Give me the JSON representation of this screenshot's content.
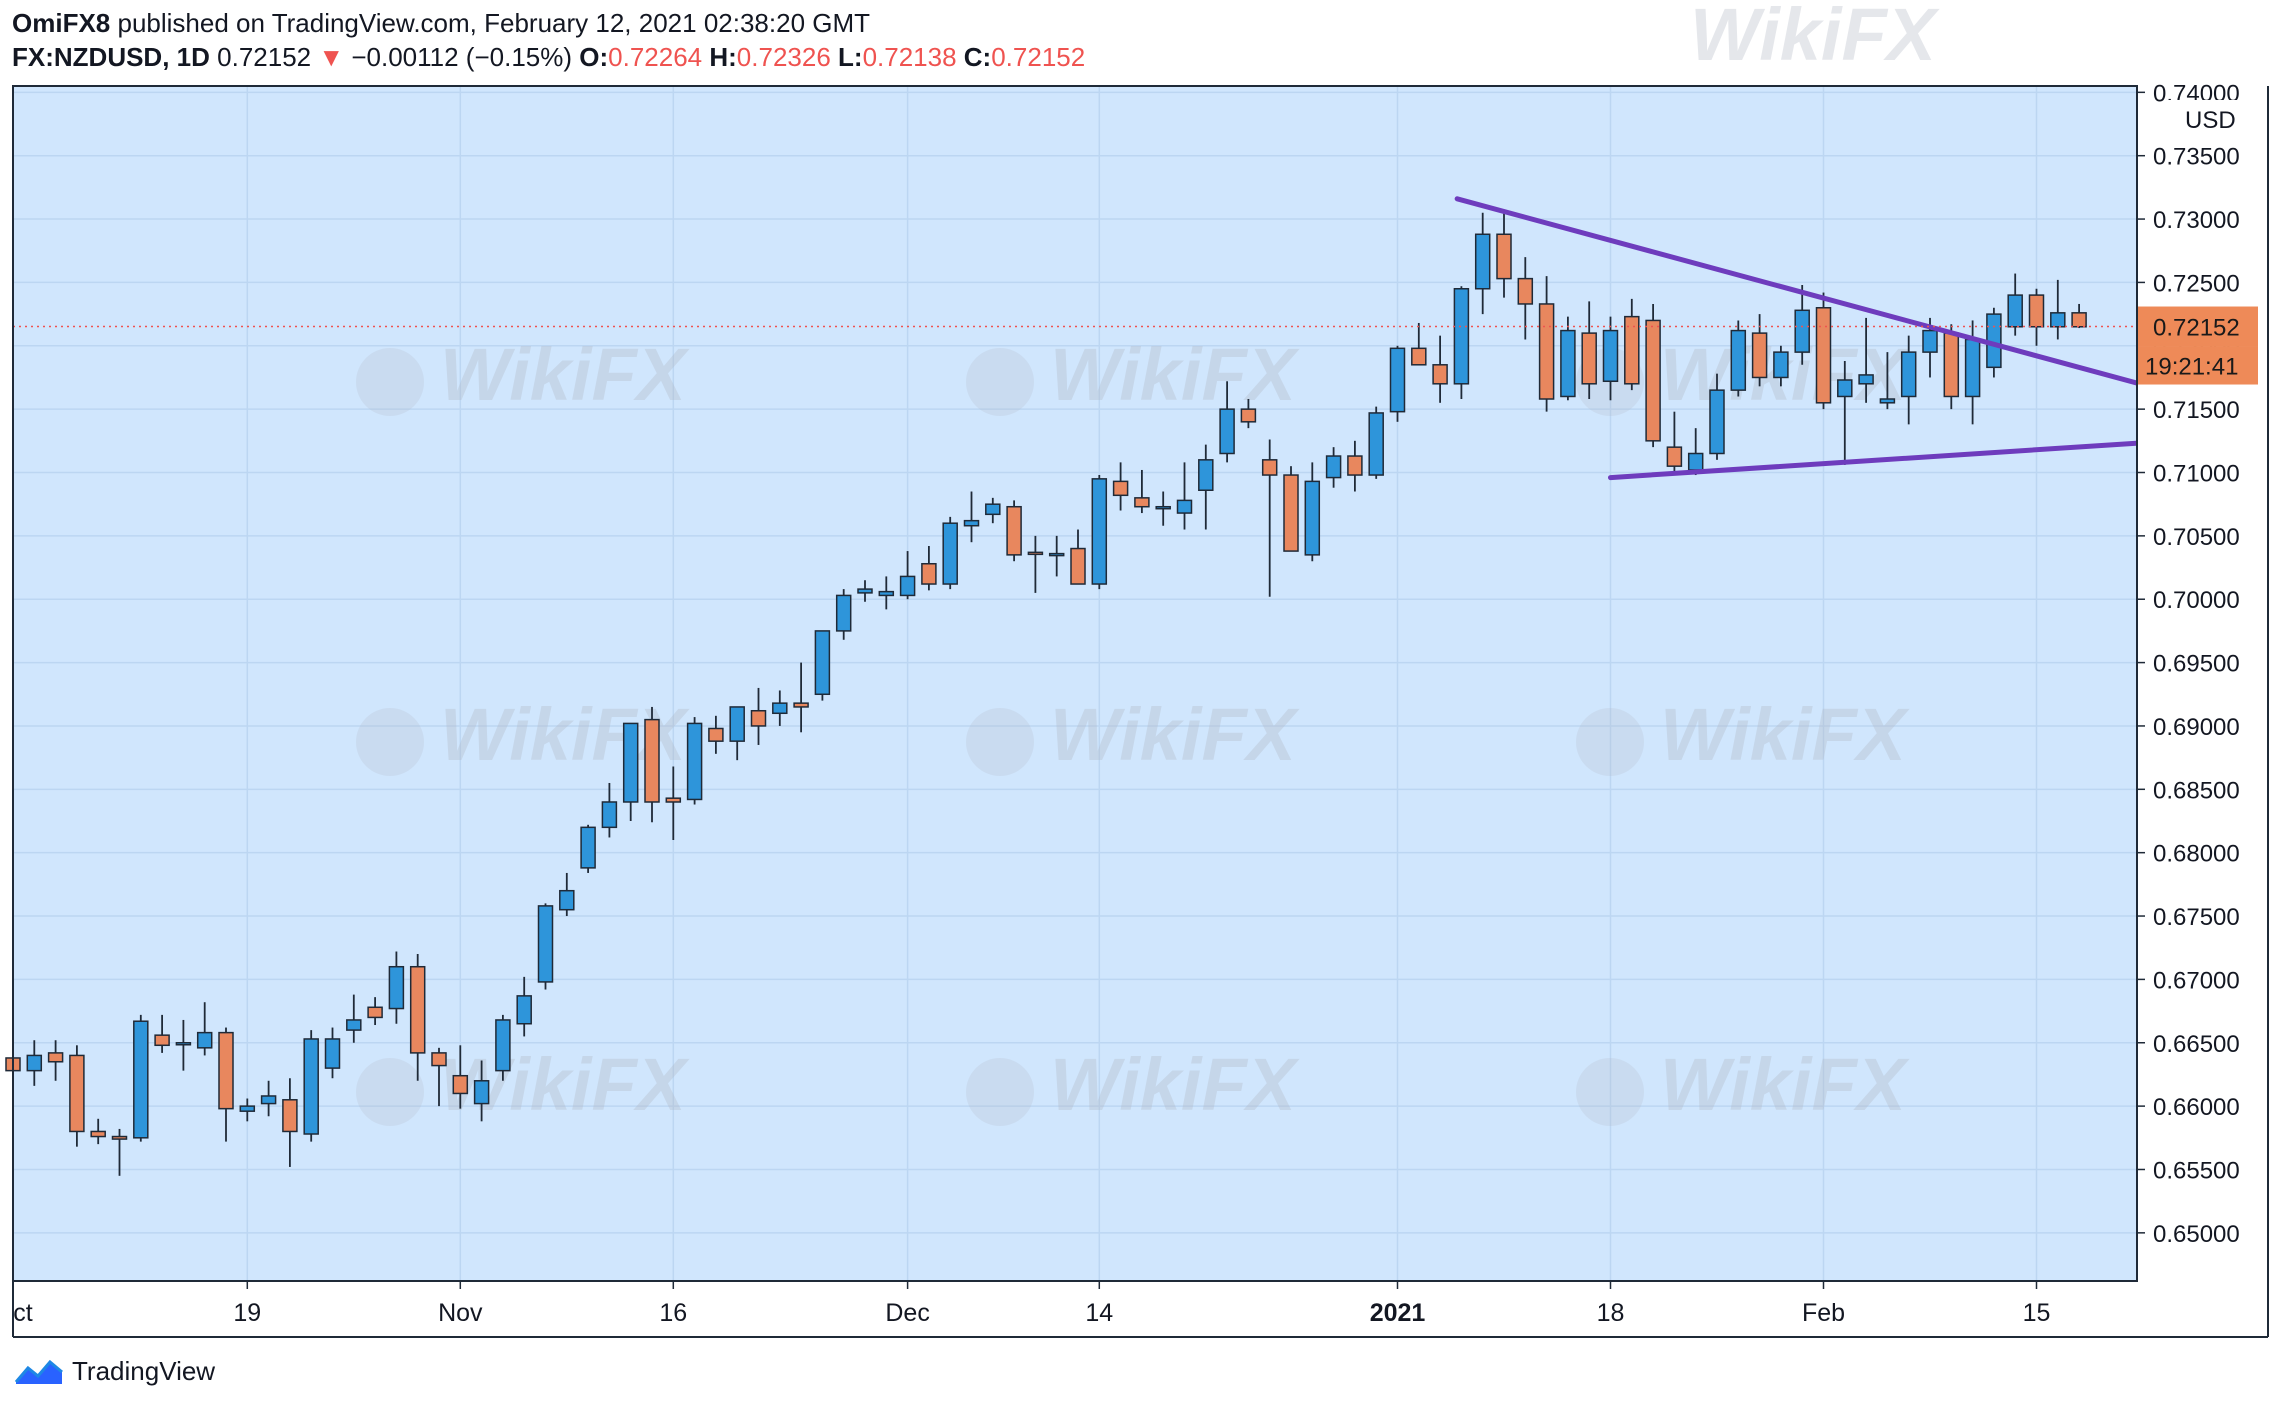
{
  "header": {
    "author": "OmiFX8",
    "published_text": "published on TradingView.com, February 12, 2021 02:38:20 GMT",
    "symbol": "FX:NZDUSD, 1D",
    "last": "0.72152",
    "change_arrow": "▼",
    "change": "−0.00112 (−0.15%)",
    "open_label": "O:",
    "open": "0.72264",
    "high_label": "H:",
    "high": "0.72326",
    "low_label": "L:",
    "low": "0.72138",
    "close_label": "C:",
    "close": "0.72152"
  },
  "footer": {
    "brand": "TradingView",
    "logo_icon": "tradingview-logo-icon"
  },
  "watermark": {
    "text": "WikiFX"
  },
  "colors": {
    "background": "#d0e6fd",
    "grid": "#bcd6f2",
    "up_candle": "#2e95da",
    "down_candle": "#e8875e",
    "wick": "#1f2a38",
    "trendline": "#6e3cbd",
    "price_tag": "#ee8a58",
    "down_change": "#ef5350"
  },
  "chart_data": {
    "type": "candlestick",
    "symbol": "FX:NZDUSD",
    "interval": "1D",
    "currency_label": "USD",
    "last_price": 0.72152,
    "countdown": "19:21:41",
    "ylim": [
      0.6462,
      0.7405
    ],
    "y_ticks": [
      "0.74000",
      "0.73500",
      "0.73000",
      "0.72500",
      "0.72000",
      "0.71500",
      "0.71000",
      "0.70500",
      "0.70000",
      "0.69500",
      "0.69000",
      "0.68500",
      "0.68000",
      "0.67500",
      "0.67000",
      "0.66500",
      "0.66000",
      "0.65500",
      "0.65000"
    ],
    "x_ticks": [
      {
        "label": "ct",
        "i": -0.5,
        "bold": false
      },
      {
        "label": "19",
        "i": 11,
        "bold": false
      },
      {
        "label": "Nov",
        "i": 21,
        "bold": false
      },
      {
        "label": "16",
        "i": 31,
        "bold": false
      },
      {
        "label": "Dec",
        "i": 42,
        "bold": false
      },
      {
        "label": "14",
        "i": 51,
        "bold": false
      },
      {
        "label": "2021",
        "i": 65,
        "bold": true
      },
      {
        "label": "18",
        "i": 75,
        "bold": false
      },
      {
        "label": "Feb",
        "i": 85,
        "bold": false
      },
      {
        "label": "15",
        "i": 95,
        "bold": false
      }
    ],
    "grid": true,
    "candles": [
      [
        0.6638,
        0.6652,
        0.6612,
        0.6628
      ],
      [
        0.6628,
        0.6652,
        0.6616,
        0.664
      ],
      [
        0.6642,
        0.6652,
        0.662,
        0.6635
      ],
      [
        0.664,
        0.6648,
        0.6568,
        0.658
      ],
      [
        0.658,
        0.659,
        0.657,
        0.6576
      ],
      [
        0.6576,
        0.6582,
        0.6545,
        0.6574
      ],
      [
        0.6575,
        0.6672,
        0.6572,
        0.6667
      ],
      [
        0.6656,
        0.6672,
        0.6642,
        0.6648
      ],
      [
        0.665,
        0.6668,
        0.6628,
        0.665
      ],
      [
        0.6646,
        0.6682,
        0.664,
        0.6658
      ],
      [
        0.6658,
        0.6662,
        0.6572,
        0.6598
      ],
      [
        0.6596,
        0.6606,
        0.6588,
        0.66
      ],
      [
        0.6602,
        0.662,
        0.6592,
        0.6608
      ],
      [
        0.6605,
        0.6622,
        0.6552,
        0.658
      ],
      [
        0.6578,
        0.666,
        0.6572,
        0.6653
      ],
      [
        0.663,
        0.6662,
        0.6622,
        0.6653
      ],
      [
        0.666,
        0.6688,
        0.665,
        0.6668
      ],
      [
        0.6678,
        0.6686,
        0.6664,
        0.667
      ],
      [
        0.6677,
        0.6722,
        0.6665,
        0.671
      ],
      [
        0.671,
        0.672,
        0.662,
        0.6642
      ],
      [
        0.6642,
        0.6646,
        0.66,
        0.6632
      ],
      [
        0.6624,
        0.6648,
        0.6598,
        0.661
      ],
      [
        0.6602,
        0.6636,
        0.6588,
        0.662
      ],
      [
        0.6628,
        0.6672,
        0.662,
        0.6668
      ],
      [
        0.6665,
        0.6702,
        0.6655,
        0.6687
      ],
      [
        0.6698,
        0.676,
        0.6692,
        0.6758
      ],
      [
        0.6755,
        0.6784,
        0.675,
        0.677
      ],
      [
        0.6788,
        0.6822,
        0.6784,
        0.682
      ],
      [
        0.682,
        0.6855,
        0.6812,
        0.684
      ],
      [
        0.684,
        0.6902,
        0.6825,
        0.6902
      ],
      [
        0.6905,
        0.6915,
        0.6824,
        0.684
      ],
      [
        0.6843,
        0.6868,
        0.681,
        0.684
      ],
      [
        0.6842,
        0.6907,
        0.6838,
        0.6902
      ],
      [
        0.6898,
        0.6908,
        0.6878,
        0.6888
      ],
      [
        0.6888,
        0.691,
        0.6873,
        0.6915
      ],
      [
        0.6912,
        0.693,
        0.6885,
        0.69
      ],
      [
        0.691,
        0.6928,
        0.69,
        0.6918
      ],
      [
        0.6918,
        0.695,
        0.6895,
        0.6915
      ],
      [
        0.6925,
        0.6975,
        0.692,
        0.6975
      ],
      [
        0.6975,
        0.7008,
        0.6968,
        0.7003
      ],
      [
        0.7005,
        0.7015,
        0.6998,
        0.7008
      ],
      [
        0.7003,
        0.7018,
        0.6992,
        0.7006
      ],
      [
        0.7003,
        0.7038,
        0.7,
        0.7018
      ],
      [
        0.7028,
        0.7042,
        0.7007,
        0.7012
      ],
      [
        0.7012,
        0.7065,
        0.7008,
        0.706
      ],
      [
        0.7058,
        0.7085,
        0.7045,
        0.7062
      ],
      [
        0.7067,
        0.708,
        0.706,
        0.7075
      ],
      [
        0.7073,
        0.7078,
        0.703,
        0.7035
      ],
      [
        0.7037,
        0.705,
        0.7005,
        0.7036
      ],
      [
        0.7036,
        0.705,
        0.7018,
        0.7036
      ],
      [
        0.704,
        0.7055,
        0.7012,
        0.7012
      ],
      [
        0.7012,
        0.7098,
        0.7008,
        0.7095
      ],
      [
        0.7093,
        0.7108,
        0.707,
        0.7082
      ],
      [
        0.708,
        0.7102,
        0.7068,
        0.7073
      ],
      [
        0.7073,
        0.7085,
        0.7058,
        0.7073
      ],
      [
        0.7068,
        0.7108,
        0.7055,
        0.7078
      ],
      [
        0.7086,
        0.7122,
        0.7055,
        0.711
      ],
      [
        0.7115,
        0.7172,
        0.7108,
        0.715
      ],
      [
        0.715,
        0.7158,
        0.7135,
        0.714
      ],
      [
        0.711,
        0.7126,
        0.7002,
        0.7098
      ],
      [
        0.7098,
        0.7105,
        0.7038,
        0.7038
      ],
      [
        0.7035,
        0.7108,
        0.703,
        0.7093
      ],
      [
        0.7096,
        0.712,
        0.7088,
        0.7113
      ],
      [
        0.7113,
        0.7125,
        0.7085,
        0.7098
      ],
      [
        0.7098,
        0.7152,
        0.7095,
        0.7147
      ],
      [
        0.7148,
        0.72,
        0.714,
        0.7198
      ],
      [
        0.7198,
        0.7218,
        0.7188,
        0.7185
      ],
      [
        0.7185,
        0.7208,
        0.7155,
        0.717
      ],
      [
        0.717,
        0.7247,
        0.7158,
        0.7245
      ],
      [
        0.7245,
        0.7305,
        0.7225,
        0.7288
      ],
      [
        0.7288,
        0.7305,
        0.7238,
        0.7253
      ],
      [
        0.7253,
        0.727,
        0.7205,
        0.7233
      ],
      [
        0.7233,
        0.7255,
        0.7148,
        0.7158
      ],
      [
        0.716,
        0.7223,
        0.7157,
        0.7212
      ],
      [
        0.721,
        0.7235,
        0.7158,
        0.717
      ],
      [
        0.7172,
        0.7223,
        0.7157,
        0.7212
      ],
      [
        0.7223,
        0.7237,
        0.7165,
        0.717
      ],
      [
        0.722,
        0.7233,
        0.712,
        0.7125
      ],
      [
        0.712,
        0.7148,
        0.71,
        0.7105
      ],
      [
        0.7102,
        0.7135,
        0.7098,
        0.7115
      ],
      [
        0.7115,
        0.7178,
        0.711,
        0.7165
      ],
      [
        0.7165,
        0.722,
        0.716,
        0.7212
      ],
      [
        0.721,
        0.7225,
        0.7168,
        0.7175
      ],
      [
        0.7175,
        0.72,
        0.7168,
        0.7195
      ],
      [
        0.7195,
        0.7248,
        0.7185,
        0.7228
      ],
      [
        0.723,
        0.7242,
        0.715,
        0.7155
      ],
      [
        0.716,
        0.7188,
        0.7106,
        0.7173
      ],
      [
        0.717,
        0.7222,
        0.7155,
        0.7177
      ],
      [
        0.7155,
        0.7195,
        0.715,
        0.7158
      ],
      [
        0.716,
        0.7208,
        0.7138,
        0.7195
      ],
      [
        0.7195,
        0.7222,
        0.7175,
        0.7212
      ],
      [
        0.721,
        0.7217,
        0.715,
        0.716
      ],
      [
        0.716,
        0.722,
        0.7138,
        0.7205
      ],
      [
        0.7183,
        0.723,
        0.7175,
        0.7225
      ],
      [
        0.7215,
        0.7257,
        0.7208,
        0.724
      ],
      [
        0.724,
        0.7245,
        0.72,
        0.7215
      ],
      [
        0.7215,
        0.7252,
        0.7205,
        0.7226
      ],
      [
        0.7226,
        0.7233,
        0.7214,
        0.7215
      ]
    ],
    "trendlines": [
      {
        "from": {
          "i": 67.8,
          "price": 0.7316
        },
        "to": {
          "i": 100.5,
          "price": 0.7167
        }
      },
      {
        "from": {
          "i": 75.0,
          "price": 0.7096
        },
        "to": {
          "i": 100.5,
          "price": 0.7124
        }
      }
    ]
  }
}
